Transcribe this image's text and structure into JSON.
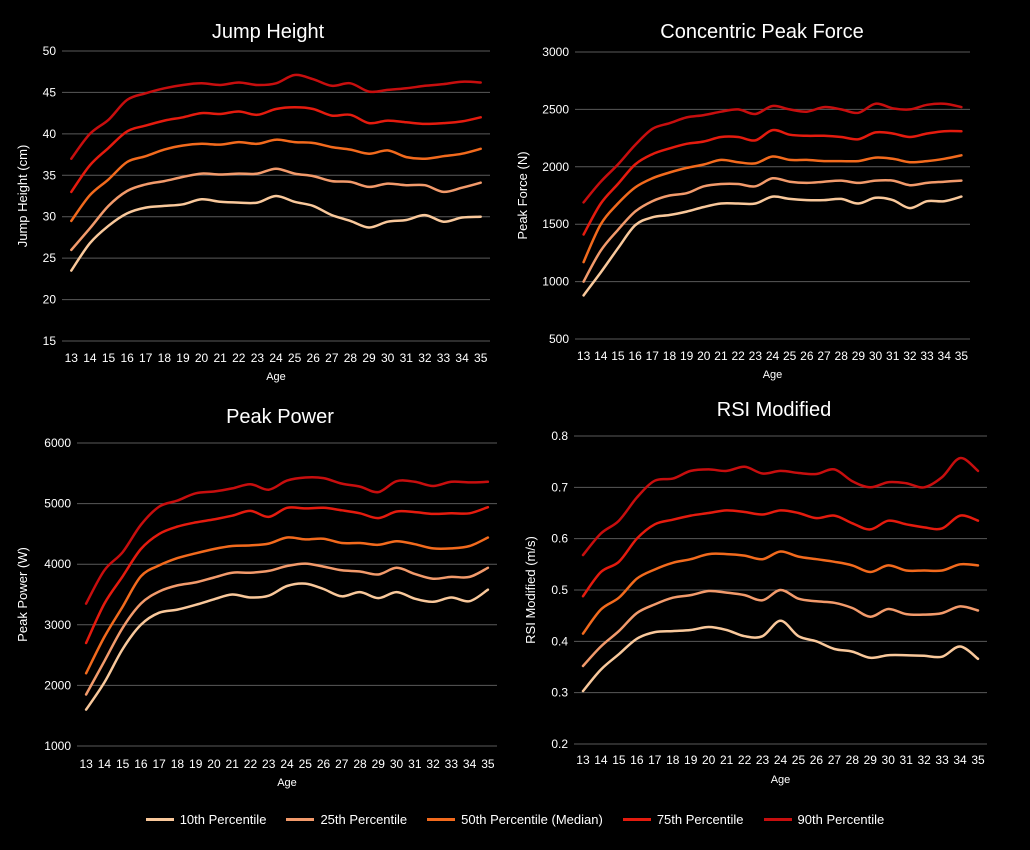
{
  "colors": {
    "p10": "#F9C89B",
    "p25": "#F29A6B",
    "p50": "#F26A1D",
    "p75": "#E41B0E",
    "p90": "#C70E0E"
  },
  "legend": [
    {
      "key": "p10",
      "label": "10th Percentile"
    },
    {
      "key": "p25",
      "label": "25th Percentile"
    },
    {
      "key": "p50",
      "label": "50th Percentile (Median)"
    },
    {
      "key": "p75",
      "label": "75th Percentile"
    },
    {
      "key": "p90",
      "label": "90th Percentile"
    }
  ],
  "chart_data": [
    {
      "type": "line",
      "title": "Jump Height",
      "xlabel": "Age",
      "ylabel": "Jump Height (cm)",
      "ylim": [
        15,
        50
      ],
      "yticks": [
        15,
        20,
        25,
        30,
        35,
        40,
        45,
        50
      ],
      "x": [
        13,
        14,
        15,
        16,
        17,
        18,
        19,
        20,
        21,
        22,
        23,
        24,
        25,
        26,
        27,
        28,
        29,
        30,
        31,
        32,
        33,
        34,
        35
      ],
      "series": [
        {
          "name": "10th Percentile",
          "key": "p10",
          "values": [
            23.5,
            26.8,
            28.9,
            30.4,
            31.1,
            31.3,
            31.5,
            32.1,
            31.8,
            31.7,
            31.7,
            32.5,
            31.8,
            31.3,
            30.2,
            29.5,
            28.7,
            29.4,
            29.6,
            30.2,
            29.4,
            29.9,
            30.0
          ]
        },
        {
          "name": "25th Percentile",
          "key": "p25",
          "values": [
            26.0,
            28.6,
            31.3,
            33.1,
            33.9,
            34.3,
            34.8,
            35.2,
            35.1,
            35.2,
            35.2,
            35.8,
            35.2,
            34.9,
            34.3,
            34.2,
            33.6,
            34.0,
            33.8,
            33.8,
            33.0,
            33.5,
            34.1
          ]
        },
        {
          "name": "50th Percentile (Median)",
          "key": "p50",
          "values": [
            29.5,
            32.6,
            34.5,
            36.6,
            37.3,
            38.1,
            38.6,
            38.8,
            38.7,
            39.0,
            38.8,
            39.3,
            39.0,
            38.9,
            38.4,
            38.1,
            37.6,
            38.0,
            37.2,
            37.0,
            37.3,
            37.6,
            38.2
          ]
        },
        {
          "name": "75th Percentile",
          "key": "p75",
          "values": [
            33.0,
            36.2,
            38.3,
            40.3,
            41.0,
            41.6,
            42.0,
            42.5,
            42.4,
            42.7,
            42.3,
            43.0,
            43.2,
            43.0,
            42.2,
            42.3,
            41.3,
            41.6,
            41.4,
            41.2,
            41.3,
            41.5,
            42.0
          ]
        },
        {
          "name": "90th Percentile",
          "key": "p90",
          "values": [
            37.0,
            40.0,
            41.7,
            44.1,
            44.9,
            45.5,
            45.9,
            46.1,
            45.9,
            46.2,
            45.9,
            46.1,
            47.1,
            46.6,
            45.8,
            46.1,
            45.1,
            45.3,
            45.5,
            45.8,
            46.0,
            46.3,
            46.2
          ]
        }
      ]
    },
    {
      "type": "line",
      "title": "Concentric Peak Force",
      "xlabel": "Age",
      "ylabel": "Peak Force (N)",
      "ylim": [
        500,
        3000
      ],
      "yticks": [
        500,
        1000,
        1500,
        2000,
        2500,
        3000
      ],
      "x": [
        13,
        14,
        15,
        16,
        17,
        18,
        19,
        20,
        21,
        22,
        23,
        24,
        25,
        26,
        27,
        28,
        29,
        30,
        31,
        32,
        33,
        34,
        35
      ],
      "series": [
        {
          "name": "10th Percentile",
          "key": "p10",
          "values": [
            880,
            1080,
            1290,
            1490,
            1560,
            1580,
            1610,
            1650,
            1680,
            1680,
            1680,
            1740,
            1720,
            1710,
            1710,
            1720,
            1680,
            1730,
            1710,
            1640,
            1700,
            1700,
            1740
          ]
        },
        {
          "name": "25th Percentile",
          "key": "p25",
          "values": [
            1000,
            1270,
            1450,
            1610,
            1700,
            1750,
            1770,
            1830,
            1850,
            1850,
            1830,
            1900,
            1870,
            1860,
            1870,
            1880,
            1860,
            1880,
            1880,
            1840,
            1860,
            1870,
            1880
          ]
        },
        {
          "name": "50th Percentile (Median)",
          "key": "p50",
          "values": [
            1170,
            1500,
            1680,
            1820,
            1900,
            1950,
            1990,
            2020,
            2060,
            2040,
            2030,
            2090,
            2060,
            2060,
            2050,
            2050,
            2050,
            2080,
            2070,
            2040,
            2050,
            2070,
            2100
          ]
        },
        {
          "name": "75th Percentile",
          "key": "p75",
          "values": [
            1410,
            1680,
            1850,
            2020,
            2110,
            2160,
            2200,
            2220,
            2260,
            2260,
            2230,
            2320,
            2280,
            2270,
            2270,
            2260,
            2240,
            2300,
            2290,
            2260,
            2290,
            2310,
            2310
          ]
        },
        {
          "name": "90th Percentile",
          "key": "p90",
          "values": [
            1690,
            1870,
            2020,
            2190,
            2330,
            2380,
            2430,
            2450,
            2480,
            2500,
            2460,
            2530,
            2500,
            2480,
            2520,
            2500,
            2470,
            2550,
            2510,
            2500,
            2540,
            2550,
            2520
          ]
        }
      ]
    },
    {
      "type": "line",
      "title": "Peak Power",
      "xlabel": "Age",
      "ylabel": "Peak Power (W)",
      "ylim": [
        1000,
        6000
      ],
      "yticks": [
        1000,
        2000,
        3000,
        4000,
        5000,
        6000
      ],
      "x": [
        13,
        14,
        15,
        16,
        17,
        18,
        19,
        20,
        21,
        22,
        23,
        24,
        25,
        26,
        27,
        28,
        29,
        30,
        31,
        32,
        33,
        34,
        35
      ],
      "series": [
        {
          "name": "10th Percentile",
          "key": "p10",
          "values": [
            1600,
            2050,
            2600,
            3000,
            3200,
            3250,
            3330,
            3420,
            3500,
            3450,
            3480,
            3640,
            3680,
            3590,
            3470,
            3540,
            3440,
            3540,
            3430,
            3380,
            3450,
            3390,
            3580
          ]
        },
        {
          "name": "25th Percentile",
          "key": "p25",
          "values": [
            1850,
            2400,
            2950,
            3350,
            3550,
            3650,
            3700,
            3780,
            3860,
            3860,
            3890,
            3970,
            4010,
            3960,
            3900,
            3880,
            3830,
            3940,
            3840,
            3760,
            3790,
            3790,
            3940
          ]
        },
        {
          "name": "50th Percentile (Median)",
          "key": "p50",
          "values": [
            2200,
            2800,
            3300,
            3800,
            3980,
            4100,
            4180,
            4250,
            4300,
            4310,
            4340,
            4440,
            4410,
            4420,
            4350,
            4350,
            4320,
            4380,
            4330,
            4260,
            4260,
            4300,
            4440
          ]
        },
        {
          "name": "75th Percentile",
          "key": "p75",
          "values": [
            2700,
            3350,
            3800,
            4250,
            4500,
            4620,
            4690,
            4740,
            4800,
            4880,
            4780,
            4930,
            4920,
            4930,
            4890,
            4840,
            4760,
            4870,
            4860,
            4830,
            4840,
            4840,
            4940
          ]
        },
        {
          "name": "90th Percentile",
          "key": "p90",
          "values": [
            3350,
            3900,
            4200,
            4650,
            4950,
            5050,
            5170,
            5200,
            5250,
            5320,
            5230,
            5380,
            5430,
            5420,
            5330,
            5280,
            5190,
            5370,
            5360,
            5290,
            5360,
            5350,
            5360
          ]
        }
      ]
    },
    {
      "type": "line",
      "title": "RSI Modified",
      "xlabel": "Age",
      "ylabel": "RSI Modified (m/s)",
      "ylim": [
        0.2,
        0.8
      ],
      "yticks": [
        0.2,
        0.3,
        0.4,
        0.5,
        0.6,
        0.7,
        0.8
      ],
      "x": [
        13,
        14,
        15,
        16,
        17,
        18,
        19,
        20,
        21,
        22,
        23,
        24,
        25,
        26,
        27,
        28,
        29,
        30,
        31,
        32,
        33,
        34,
        35
      ],
      "series": [
        {
          "name": "10th Percentile",
          "key": "p10",
          "values": [
            0.303,
            0.345,
            0.375,
            0.405,
            0.418,
            0.42,
            0.422,
            0.428,
            0.422,
            0.41,
            0.41,
            0.44,
            0.41,
            0.4,
            0.385,
            0.38,
            0.368,
            0.373,
            0.373,
            0.372,
            0.37,
            0.39,
            0.366
          ]
        },
        {
          "name": "25th Percentile",
          "key": "p25",
          "values": [
            0.352,
            0.39,
            0.42,
            0.455,
            0.472,
            0.485,
            0.49,
            0.498,
            0.495,
            0.49,
            0.48,
            0.5,
            0.483,
            0.478,
            0.475,
            0.465,
            0.448,
            0.463,
            0.453,
            0.452,
            0.455,
            0.468,
            0.46
          ]
        },
        {
          "name": "50th Percentile (Median)",
          "key": "p50",
          "values": [
            0.415,
            0.462,
            0.485,
            0.522,
            0.54,
            0.553,
            0.56,
            0.57,
            0.57,
            0.567,
            0.56,
            0.575,
            0.565,
            0.56,
            0.555,
            0.548,
            0.535,
            0.548,
            0.538,
            0.538,
            0.538,
            0.55,
            0.548
          ]
        },
        {
          "name": "75th Percentile",
          "key": "p75",
          "values": [
            0.488,
            0.535,
            0.555,
            0.6,
            0.628,
            0.637,
            0.645,
            0.65,
            0.655,
            0.652,
            0.647,
            0.655,
            0.65,
            0.64,
            0.645,
            0.63,
            0.618,
            0.635,
            0.628,
            0.622,
            0.62,
            0.645,
            0.635
          ]
        },
        {
          "name": "90th Percentile",
          "key": "p90",
          "values": [
            0.568,
            0.61,
            0.635,
            0.68,
            0.713,
            0.717,
            0.732,
            0.735,
            0.732,
            0.74,
            0.727,
            0.732,
            0.728,
            0.726,
            0.735,
            0.712,
            0.7,
            0.71,
            0.708,
            0.7,
            0.72,
            0.757,
            0.732
          ]
        }
      ]
    }
  ]
}
